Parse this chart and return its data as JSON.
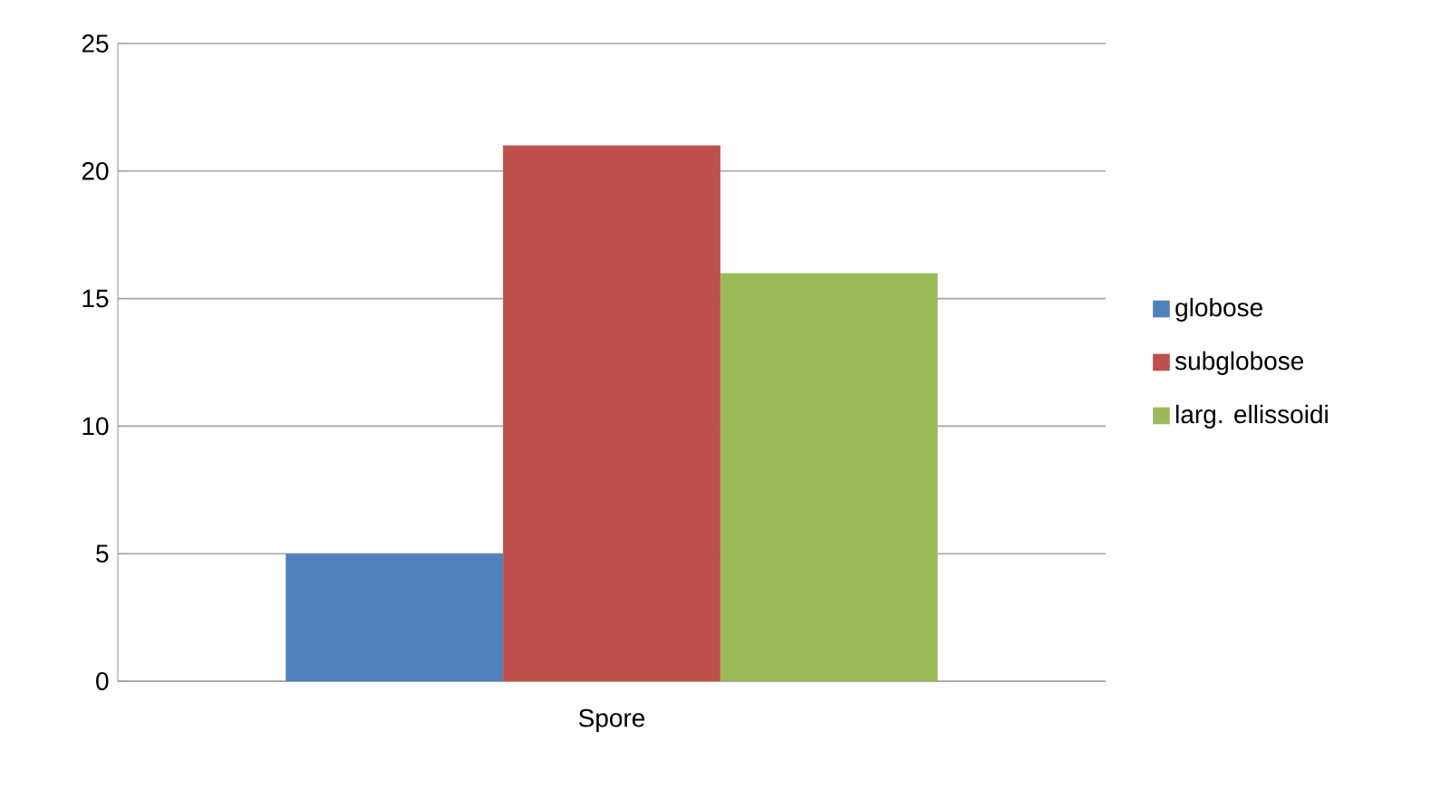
{
  "chart_data": {
    "type": "bar",
    "categories": [
      "Spore"
    ],
    "series": [
      {
        "name": "globose",
        "color": "#4f81bd",
        "values": [
          5
        ]
      },
      {
        "name": "subglobose",
        "color": "#c0504d",
        "values": [
          21
        ]
      },
      {
        "name": "larg. ellissoidi",
        "color": "#9bbb59",
        "values": [
          16
        ]
      }
    ],
    "ylim": [
      0,
      25
    ],
    "yticks": [
      0,
      5,
      10,
      15,
      20,
      25
    ],
    "grid": "y",
    "legend": "right"
  }
}
